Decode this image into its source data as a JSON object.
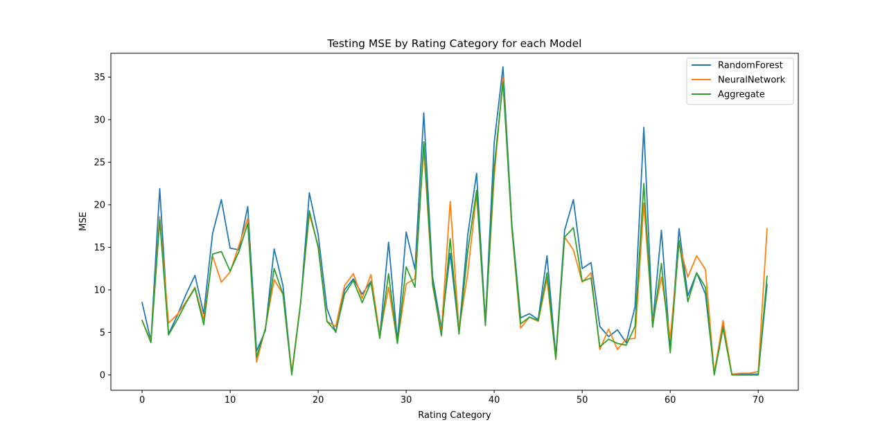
{
  "chart_data": {
    "type": "line",
    "title": "Testing MSE by Rating Category for each Model",
    "xlabel": "Rating Category",
    "ylabel": "MSE",
    "xlim": [
      -3.55,
      74.55
    ],
    "ylim": [
      -1.8,
      37.8
    ],
    "xticks": [
      0,
      10,
      20,
      30,
      40,
      50,
      60,
      70
    ],
    "yticks": [
      0,
      5,
      10,
      15,
      20,
      25,
      30,
      35
    ],
    "grid": false,
    "legend_position": "upper right",
    "x": [
      0,
      1,
      2,
      3,
      4,
      5,
      6,
      7,
      8,
      9,
      10,
      11,
      12,
      13,
      14,
      15,
      16,
      17,
      18,
      19,
      20,
      21,
      22,
      23,
      24,
      25,
      26,
      27,
      28,
      29,
      30,
      31,
      32,
      33,
      34,
      35,
      36,
      37,
      38,
      39,
      40,
      41,
      42,
      43,
      44,
      45,
      46,
      47,
      48,
      49,
      50,
      51,
      52,
      53,
      54,
      55,
      56,
      57,
      58,
      59,
      60,
      61,
      62,
      63,
      64,
      65,
      66,
      67,
      68,
      69,
      70,
      71
    ],
    "series": [
      {
        "name": "RandomForest",
        "color": "#1f77b4",
        "values": [
          8.5,
          4.0,
          21.9,
          4.8,
          7.0,
          9.5,
          11.7,
          7.2,
          16.6,
          20.6,
          14.9,
          14.7,
          19.8,
          2.8,
          5.2,
          14.8,
          10.5,
          0.2,
          8.3,
          21.4,
          16.5,
          7.8,
          5.0,
          10.0,
          11.3,
          9.5,
          11.0,
          4.5,
          15.6,
          4.0,
          16.8,
          12.4,
          30.8,
          11.5,
          5.5,
          14.3,
          5.0,
          16.5,
          23.7,
          6.2,
          27.3,
          36.2,
          17.8,
          6.7,
          7.2,
          6.5,
          14.0,
          2.2,
          17.0,
          20.6,
          12.5,
          13.2,
          5.7,
          4.5,
          5.3,
          3.8,
          8.0,
          29.1,
          6.0,
          17.0,
          3.0,
          17.2,
          9.3,
          12.0,
          9.5,
          0.2,
          5.8,
          0.1,
          0.1,
          0.1,
          0.1,
          10.6
        ]
      },
      {
        "name": "NeuralNetwork",
        "color": "#ff7f0e",
        "values": [
          6.4,
          4.0,
          18.6,
          6.1,
          7.1,
          8.6,
          10.3,
          6.5,
          14.0,
          10.9,
          12.1,
          15.2,
          18.4,
          1.5,
          5.5,
          11.2,
          9.5,
          0.3,
          8.5,
          18.9,
          15.2,
          6.3,
          5.7,
          10.5,
          11.9,
          9.0,
          11.8,
          4.6,
          10.3,
          3.8,
          10.7,
          11.3,
          26.6,
          10.5,
          5.1,
          20.4,
          5.3,
          12.0,
          21.3,
          6.0,
          23.3,
          35.0,
          17.2,
          5.5,
          6.8,
          6.3,
          11.3,
          1.8,
          16.2,
          14.7,
          10.9,
          12.0,
          3.0,
          5.4,
          3.0,
          4.2,
          4.3,
          20.2,
          6.2,
          11.5,
          4.3,
          15.5,
          11.5,
          14.0,
          12.4,
          0.2,
          6.4,
          0.1,
          0.2,
          0.2,
          0.4,
          17.2
        ]
      },
      {
        "name": "Aggregate",
        "color": "#2ca02c",
        "values": [
          6.4,
          3.8,
          18.2,
          4.7,
          6.5,
          8.5,
          10.2,
          5.9,
          14.2,
          14.5,
          12.2,
          14.5,
          17.8,
          2.1,
          5.4,
          12.5,
          9.5,
          0.0,
          8.4,
          19.3,
          15.0,
          6.3,
          5.1,
          9.5,
          11.1,
          8.5,
          10.9,
          4.3,
          11.9,
          3.7,
          12.7,
          10.3,
          27.4,
          10.8,
          4.6,
          16.0,
          4.8,
          14.6,
          21.7,
          5.8,
          24.4,
          34.4,
          17.5,
          6.0,
          6.8,
          6.4,
          12.0,
          1.9,
          16.2,
          17.3,
          11.0,
          11.4,
          3.3,
          4.2,
          3.7,
          3.5,
          5.7,
          22.5,
          5.6,
          13.1,
          2.6,
          15.8,
          8.6,
          12.0,
          10.3,
          0.0,
          5.5,
          0.0,
          0.0,
          0.0,
          0.0,
          11.6
        ]
      }
    ]
  }
}
